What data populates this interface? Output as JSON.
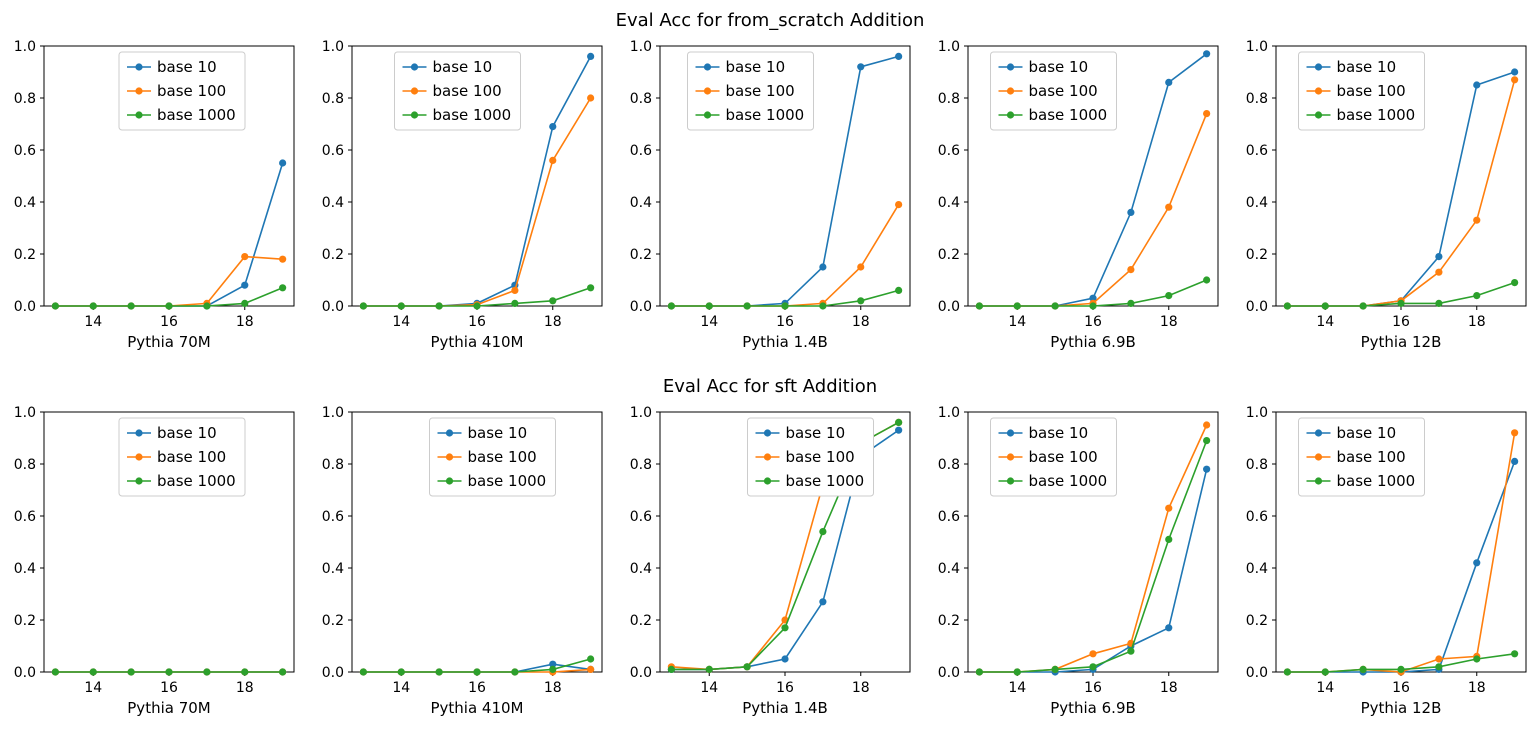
{
  "figure": {
    "rows": [
      {
        "title": "Eval Acc for from_scratch Addition"
      },
      {
        "title": "Eval Acc for sft Addition"
      }
    ]
  },
  "colors": {
    "base10": "#1f77b4",
    "base100": "#ff7f0e",
    "base1000": "#2ca02c"
  },
  "chart_data": [
    {
      "type": "line",
      "row": 0,
      "xlabel": "Pythia 70M",
      "x": [
        13,
        14,
        15,
        16,
        17,
        18,
        19
      ],
      "xticks": [
        14,
        16,
        18
      ],
      "yticks": [
        0.0,
        0.2,
        0.4,
        0.6,
        0.8,
        1.0
      ],
      "ylim": [
        0,
        1
      ],
      "legend_x": 0.3,
      "series": [
        {
          "name": "base 10",
          "color": "#1f77b4",
          "y": [
            0,
            0,
            0,
            0,
            0,
            0.08,
            0.55
          ]
        },
        {
          "name": "base 100",
          "color": "#ff7f0e",
          "y": [
            0,
            0,
            0,
            0,
            0.01,
            0.19,
            0.18
          ]
        },
        {
          "name": "base 1000",
          "color": "#2ca02c",
          "y": [
            0,
            0,
            0,
            0,
            0,
            0.01,
            0.07
          ]
        }
      ]
    },
    {
      "type": "line",
      "row": 0,
      "xlabel": "Pythia 410M",
      "x": [
        13,
        14,
        15,
        16,
        17,
        18,
        19
      ],
      "xticks": [
        14,
        16,
        18
      ],
      "yticks": [
        0.0,
        0.2,
        0.4,
        0.6,
        0.8,
        1.0
      ],
      "ylim": [
        0,
        1
      ],
      "legend_x": 0.17,
      "series": [
        {
          "name": "base 10",
          "color": "#1f77b4",
          "y": [
            0,
            0,
            0,
            0.01,
            0.08,
            0.69,
            0.96
          ]
        },
        {
          "name": "base 100",
          "color": "#ff7f0e",
          "y": [
            0,
            0,
            0,
            0.005,
            0.06,
            0.56,
            0.8
          ]
        },
        {
          "name": "base 1000",
          "color": "#2ca02c",
          "y": [
            0,
            0,
            0,
            0,
            0.01,
            0.02,
            0.07
          ]
        }
      ]
    },
    {
      "type": "line",
      "row": 0,
      "xlabel": "Pythia 1.4B",
      "x": [
        13,
        14,
        15,
        16,
        17,
        18,
        19
      ],
      "xticks": [
        14,
        16,
        18
      ],
      "yticks": [
        0.0,
        0.2,
        0.4,
        0.6,
        0.8,
        1.0
      ],
      "ylim": [
        0,
        1
      ],
      "legend_x": 0.11,
      "series": [
        {
          "name": "base 10",
          "color": "#1f77b4",
          "y": [
            0,
            0,
            0,
            0.01,
            0.15,
            0.92,
            0.96
          ]
        },
        {
          "name": "base 100",
          "color": "#ff7f0e",
          "y": [
            0,
            0,
            0,
            0,
            0.01,
            0.15,
            0.39
          ]
        },
        {
          "name": "base 1000",
          "color": "#2ca02c",
          "y": [
            0,
            0,
            0,
            0,
            0,
            0.02,
            0.06
          ]
        }
      ]
    },
    {
      "type": "line",
      "row": 0,
      "xlabel": "Pythia 6.9B",
      "x": [
        13,
        14,
        15,
        16,
        17,
        18,
        19
      ],
      "xticks": [
        14,
        16,
        18
      ],
      "yticks": [
        0.0,
        0.2,
        0.4,
        0.6,
        0.8,
        1.0
      ],
      "ylim": [
        0,
        1
      ],
      "legend_x": 0.09,
      "series": [
        {
          "name": "base 10",
          "color": "#1f77b4",
          "y": [
            0,
            0,
            0,
            0.03,
            0.36,
            0.86,
            0.97
          ]
        },
        {
          "name": "base 100",
          "color": "#ff7f0e",
          "y": [
            0,
            0,
            0,
            0.01,
            0.14,
            0.38,
            0.74
          ]
        },
        {
          "name": "base 1000",
          "color": "#2ca02c",
          "y": [
            0,
            0,
            0,
            0,
            0.01,
            0.04,
            0.1
          ]
        }
      ]
    },
    {
      "type": "line",
      "row": 0,
      "xlabel": "Pythia 12B",
      "x": [
        13,
        14,
        15,
        16,
        17,
        18,
        19
      ],
      "xticks": [
        14,
        16,
        18
      ],
      "yticks": [
        0.0,
        0.2,
        0.4,
        0.6,
        0.8,
        1.0
      ],
      "ylim": [
        0,
        1
      ],
      "legend_x": 0.09,
      "series": [
        {
          "name": "base 10",
          "color": "#1f77b4",
          "y": [
            0,
            0,
            0,
            0.02,
            0.19,
            0.85,
            0.9
          ]
        },
        {
          "name": "base 100",
          "color": "#ff7f0e",
          "y": [
            0,
            0,
            0,
            0.02,
            0.13,
            0.33,
            0.87
          ]
        },
        {
          "name": "base 1000",
          "color": "#2ca02c",
          "y": [
            0,
            0,
            0,
            0.01,
            0.01,
            0.04,
            0.09
          ]
        }
      ]
    },
    {
      "type": "line",
      "row": 1,
      "xlabel": "Pythia 70M",
      "x": [
        13,
        14,
        15,
        16,
        17,
        18,
        19
      ],
      "xticks": [
        14,
        16,
        18
      ],
      "yticks": [
        0.0,
        0.2,
        0.4,
        0.6,
        0.8,
        1.0
      ],
      "ylim": [
        0,
        1
      ],
      "legend_x": 0.3,
      "series": [
        {
          "name": "base 10",
          "color": "#1f77b4",
          "y": [
            0,
            0,
            0,
            0,
            0,
            0,
            0
          ]
        },
        {
          "name": "base 100",
          "color": "#ff7f0e",
          "y": [
            0,
            0,
            0,
            0,
            0,
            0,
            0
          ]
        },
        {
          "name": "base 1000",
          "color": "#2ca02c",
          "y": [
            0,
            0,
            0,
            0,
            0,
            0,
            0
          ]
        }
      ]
    },
    {
      "type": "line",
      "row": 1,
      "xlabel": "Pythia 410M",
      "x": [
        13,
        14,
        15,
        16,
        17,
        18,
        19
      ],
      "xticks": [
        14,
        16,
        18
      ],
      "yticks": [
        0.0,
        0.2,
        0.4,
        0.6,
        0.8,
        1.0
      ],
      "ylim": [
        0,
        1
      ],
      "legend_x": 0.31,
      "series": [
        {
          "name": "base 10",
          "color": "#1f77b4",
          "y": [
            0,
            0,
            0,
            0,
            0,
            0.03,
            0.01
          ]
        },
        {
          "name": "base 100",
          "color": "#ff7f0e",
          "y": [
            0,
            0,
            0,
            0,
            0,
            0,
            0.01
          ]
        },
        {
          "name": "base 1000",
          "color": "#2ca02c",
          "y": [
            0,
            0,
            0,
            0,
            0,
            0.01,
            0.05
          ]
        }
      ]
    },
    {
      "type": "line",
      "row": 1,
      "xlabel": "Pythia 1.4B",
      "x": [
        13,
        14,
        15,
        16,
        17,
        18,
        19
      ],
      "xticks": [
        14,
        16,
        18
      ],
      "yticks": [
        0.0,
        0.2,
        0.4,
        0.6,
        0.8,
        1.0
      ],
      "ylim": [
        0,
        1
      ],
      "legend_x": 0.35,
      "series": [
        {
          "name": "base 10",
          "color": "#1f77b4",
          "y": [
            0.01,
            0.01,
            0.02,
            0.05,
            0.27,
            0.83,
            0.93
          ]
        },
        {
          "name": "base 100",
          "color": "#ff7f0e",
          "y": [
            0.02,
            0.01,
            0.02,
            0.2,
            0.72,
            0.88,
            0.96
          ]
        },
        {
          "name": "base 1000",
          "color": "#2ca02c",
          "y": [
            0.01,
            0.01,
            0.02,
            0.17,
            0.54,
            0.88,
            0.96
          ]
        }
      ]
    },
    {
      "type": "line",
      "row": 1,
      "xlabel": "Pythia 6.9B",
      "x": [
        13,
        14,
        15,
        16,
        17,
        18,
        19
      ],
      "xticks": [
        14,
        16,
        18
      ],
      "yticks": [
        0.0,
        0.2,
        0.4,
        0.6,
        0.8,
        1.0
      ],
      "ylim": [
        0,
        1
      ],
      "legend_x": 0.09,
      "series": [
        {
          "name": "base 10",
          "color": "#1f77b4",
          "y": [
            0,
            0,
            0,
            0.01,
            0.1,
            0.17,
            0.78
          ]
        },
        {
          "name": "base 100",
          "color": "#ff7f0e",
          "y": [
            0,
            0,
            0.01,
            0.07,
            0.11,
            0.63,
            0.95
          ]
        },
        {
          "name": "base 1000",
          "color": "#2ca02c",
          "y": [
            0,
            0,
            0.01,
            0.02,
            0.08,
            0.51,
            0.89
          ]
        }
      ]
    },
    {
      "type": "line",
      "row": 1,
      "xlabel": "Pythia 12B",
      "x": [
        13,
        14,
        15,
        16,
        17,
        18,
        19
      ],
      "xticks": [
        14,
        16,
        18
      ],
      "yticks": [
        0.0,
        0.2,
        0.4,
        0.6,
        0.8,
        1.0
      ],
      "ylim": [
        0,
        1
      ],
      "legend_x": 0.09,
      "series": [
        {
          "name": "base 10",
          "color": "#1f77b4",
          "y": [
            0,
            0,
            0,
            0,
            0.01,
            0.42,
            0.81
          ]
        },
        {
          "name": "base 100",
          "color": "#ff7f0e",
          "y": [
            0,
            0,
            0.01,
            0,
            0.05,
            0.06,
            0.92
          ]
        },
        {
          "name": "base 1000",
          "color": "#2ca02c",
          "y": [
            0,
            0,
            0.01,
            0.01,
            0.02,
            0.05,
            0.07
          ]
        }
      ]
    }
  ]
}
